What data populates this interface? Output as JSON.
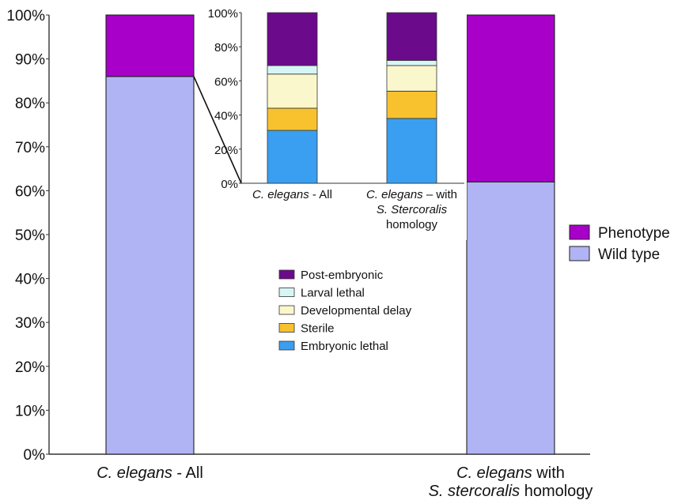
{
  "chart_data": [
    {
      "type": "bar",
      "stacked": true,
      "role": "main",
      "categories": [
        {
          "italic": "C. elegans",
          "rest": " - All",
          "line2": "",
          "line2_italic": ""
        },
        {
          "italic": "C. elegans",
          "rest": " with",
          "line2_italic": "S. stercoralis",
          "line2": " homology"
        }
      ],
      "series": [
        {
          "name": "Wild type",
          "values": [
            86,
            62
          ],
          "color": "#b0b4f4"
        },
        {
          "name": "Phenotype",
          "values": [
            14,
            38
          ],
          "color": "#a800c8"
        }
      ],
      "ylim": [
        0,
        100
      ],
      "yticks": [
        "0%",
        "10%",
        "20%",
        "30%",
        "40%",
        "50%",
        "60%",
        "70%",
        "80%",
        "90%",
        "100%"
      ],
      "legend": "right"
    },
    {
      "type": "bar",
      "stacked": true,
      "role": "inset",
      "categories": [
        {
          "italic": "C. elegans",
          "rest": " - All",
          "line2": "",
          "line2_italic": "",
          "line3": ""
        },
        {
          "italic": "C. elegans",
          "rest": " – with",
          "line2_italic": "S. Stercoralis",
          "line2": "",
          "line3": "homology"
        }
      ],
      "series": [
        {
          "name": "Embryonic lethal",
          "values": [
            31,
            38
          ],
          "color": "#3a9ff0"
        },
        {
          "name": "Sterile",
          "values": [
            13,
            16
          ],
          "color": "#f7c22e"
        },
        {
          "name": "Developmental delay",
          "values": [
            20,
            15
          ],
          "color": "#fbf7cc"
        },
        {
          "name": "Larval lethal",
          "values": [
            5,
            3
          ],
          "color": "#d6f6f6"
        },
        {
          "name": "Post-embryonic",
          "values": [
            31,
            28
          ],
          "color": "#6c0a8c"
        }
      ],
      "ylim": [
        0,
        100
      ],
      "yticks": [
        "0%",
        "20%",
        "40%",
        "60%",
        "80%",
        "100%"
      ],
      "legend": "bottom-center"
    }
  ]
}
